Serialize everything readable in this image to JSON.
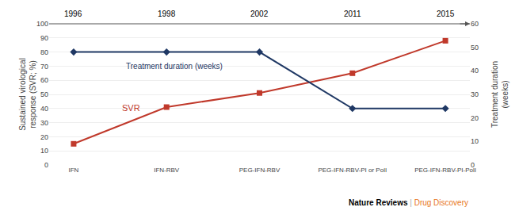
{
  "chart_data": {
    "type": "line",
    "categories": [
      "IFN",
      "IFN-RBV",
      "PEG-IFN-RBV",
      "PEG-IFN-RBV-PI or PolI",
      "PEG-IFN-RBV-PI-PolI"
    ],
    "series": [
      {
        "name": "SVR",
        "color": "#c0392b",
        "marker": "square",
        "values": [
          15,
          41,
          51,
          65,
          88
        ]
      },
      {
        "name": "Treatment duration (weeks)",
        "color": "#1f3864",
        "marker": "diamond",
        "axis": "y2",
        "values": [
          48,
          48,
          48,
          24,
          24
        ]
      }
    ],
    "ylabel": "Sustained virological\nresponse (SVR; %)",
    "y2label": "Treatment duration\n(weeks)",
    "ylim": [
      0,
      100
    ],
    "yticks": [
      0,
      10,
      20,
      30,
      40,
      50,
      60,
      70,
      80,
      90,
      100
    ],
    "y2lim": [
      0,
      60
    ],
    "y2ticks": [
      0,
      10,
      20,
      30,
      40,
      50,
      60
    ],
    "grid": true,
    "annotations": [
      {
        "text": "1996",
        "category": "IFN"
      },
      {
        "text": "1998",
        "category": "IFN-RBV"
      },
      {
        "text": "2002",
        "category": "PEG-IFN-RBV"
      },
      {
        "text": "2011",
        "category": "PEG-IFN-RBV-PI or PolI"
      },
      {
        "text": "2015",
        "category": "PEG-IFN-RBV-PI-PolI"
      },
      {
        "text": "Nature Reviews"
      },
      {
        "text": "|",
        "color": "#aaaaaa"
      },
      {
        "text": "Drug Discovery",
        "color": "#e87722"
      }
    ]
  }
}
